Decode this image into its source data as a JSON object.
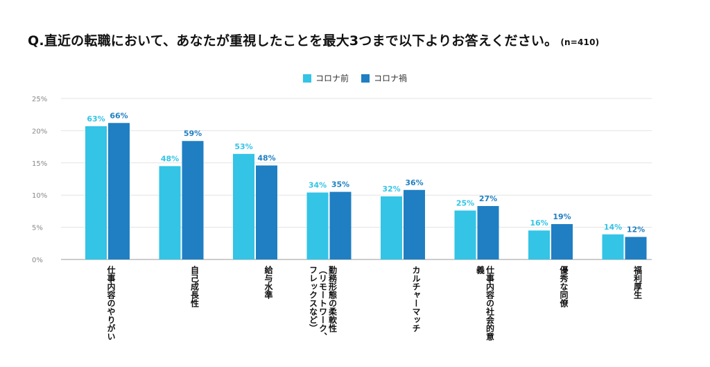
{
  "title": "Q.直近の転職において、あなたが重視したことを最大3つまで以下よりお答えください。",
  "n_note": "(n=410)",
  "colors": {
    "before": "#33c4e6",
    "during": "#1f7fc2",
    "grid": "#e3e3e3",
    "axis": "#9a9a9a",
    "tick": "#888888"
  },
  "chart_data": {
    "type": "bar",
    "categories": [
      "仕事内容の\nやりがい",
      "自己成長性",
      "給与水準",
      "勤務形態の\n柔軟性（リモート\nワーク、フレック\nスなど）",
      "カルチャーマッチ",
      "仕事内容の\n社会的意義",
      "優秀な同僚",
      "福利厚生"
    ],
    "series": [
      {
        "name": "コロナ前",
        "values": [
          20.7,
          14.5,
          16.4,
          10.4,
          9.8,
          7.6,
          4.5,
          3.9
        ],
        "labels": [
          "63%",
          "48%",
          "53%",
          "34%",
          "32%",
          "25%",
          "16%",
          "14%"
        ]
      },
      {
        "name": "コロナ禍",
        "values": [
          21.2,
          18.4,
          14.6,
          10.5,
          10.8,
          8.3,
          5.5,
          3.5
        ],
        "labels": [
          "66%",
          "59%",
          "48%",
          "35%",
          "36%",
          "27%",
          "19%",
          "12%"
        ]
      }
    ],
    "y_ticks": [
      "0%",
      "5%",
      "10%",
      "15%",
      "20%",
      "25%"
    ],
    "ylim": [
      0,
      25
    ],
    "grid": true,
    "legend_position": "top-center"
  }
}
